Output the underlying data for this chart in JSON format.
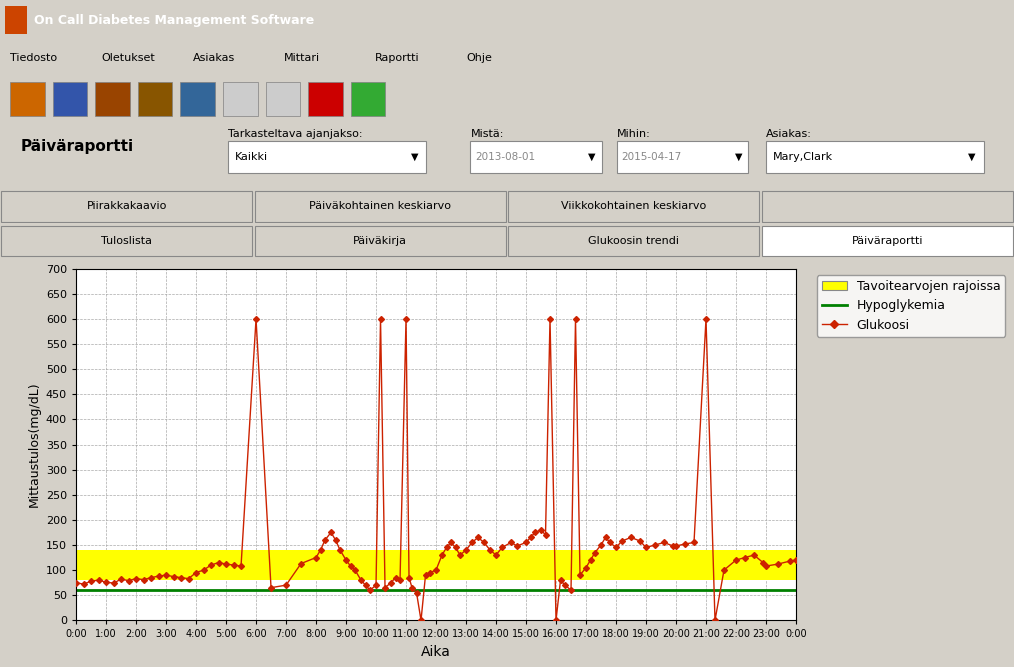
{
  "window_title": "On Call Diabetes Management Software",
  "paiva_raportti_label": "Päiväraportti",
  "tarkasteltava_label": "Tarkasteltava ajanjakso:",
  "mista_label": "Mistä:",
  "mihin_label": "Mihin:",
  "asiakas_label": "Asiakas:",
  "kaikki_label": "Kaikki",
  "mista_value": "2013-08-01",
  "mihin_value": "2015-04-17",
  "asiakas_value": "Mary,Clark",
  "tab1": "Piirakkakaavio",
  "tab2": "Päiväkohtainen keskiarvo",
  "tab3": "Viikkokohtainen keskiarvo",
  "tab5": "Tuloslista",
  "tab6": "Päiväkirja",
  "tab7": "Glukoosin trendi",
  "tab8": "Päiväraportti",
  "xlabel": "Aika",
  "ylabel": "Mittaustulos(mg/dL)",
  "ylim": [
    0,
    700
  ],
  "yticks": [
    0,
    50,
    100,
    150,
    200,
    250,
    300,
    350,
    400,
    450,
    500,
    550,
    600,
    650,
    700
  ],
  "target_low": 80,
  "target_high": 140,
  "hypo_line": 60,
  "target_color": "#FFFF00",
  "hypo_color": "#008000",
  "glucose_color": "#CC2200",
  "grid_color": "#AAAAAA",
  "legend_labels": [
    "Tavoitearvojen rajoissa",
    "Hypoglykemia",
    "Glukoosi"
  ],
  "glucose_x": [
    0.0,
    0.25,
    0.5,
    0.75,
    1.0,
    1.25,
    1.5,
    1.75,
    2.0,
    2.25,
    2.5,
    2.75,
    3.0,
    3.25,
    3.5,
    3.75,
    4.0,
    4.25,
    4.5,
    4.75,
    5.0,
    5.25,
    5.5,
    6.0,
    6.5,
    7.0,
    7.5,
    8.0,
    8.15,
    8.3,
    8.5,
    8.65,
    8.8,
    9.0,
    9.15,
    9.3,
    9.5,
    9.65,
    9.8,
    10.0,
    10.15,
    10.3,
    10.5,
    10.65,
    10.8,
    11.0,
    11.1,
    11.2,
    11.35,
    11.5,
    11.65,
    11.8,
    12.0,
    12.2,
    12.35,
    12.5,
    12.65,
    12.8,
    13.0,
    13.2,
    13.4,
    13.6,
    13.8,
    14.0,
    14.2,
    14.5,
    14.7,
    15.0,
    15.15,
    15.3,
    15.5,
    15.65,
    15.8,
    16.0,
    16.15,
    16.3,
    16.5,
    16.65,
    16.8,
    17.0,
    17.15,
    17.3,
    17.5,
    17.65,
    17.8,
    18.0,
    18.2,
    18.5,
    18.8,
    19.0,
    19.3,
    19.6,
    19.9,
    20.0,
    20.3,
    20.6,
    21.0,
    21.3,
    21.6,
    22.0,
    22.3,
    22.6,
    22.9,
    23.0,
    23.4,
    23.8,
    24.0
  ],
  "glucose_y": [
    75,
    72,
    78,
    80,
    76,
    74,
    82,
    79,
    83,
    81,
    85,
    88,
    90,
    87,
    85,
    83,
    95,
    100,
    110,
    115,
    112,
    110,
    108,
    600,
    65,
    70,
    113,
    125,
    140,
    160,
    175,
    160,
    140,
    120,
    108,
    100,
    80,
    70,
    60,
    70,
    600,
    65,
    75,
    85,
    80,
    600,
    85,
    65,
    55,
    0,
    90,
    95,
    100,
    130,
    145,
    155,
    145,
    130,
    140,
    155,
    165,
    155,
    140,
    130,
    145,
    155,
    148,
    155,
    165,
    175,
    180,
    170,
    600,
    0,
    80,
    70,
    60,
    600,
    90,
    105,
    120,
    135,
    150,
    165,
    155,
    145,
    158,
    165,
    158,
    145,
    150,
    155,
    148,
    148,
    152,
    155,
    600,
    0,
    100,
    120,
    125,
    130,
    115,
    108,
    112,
    118,
    120
  ]
}
